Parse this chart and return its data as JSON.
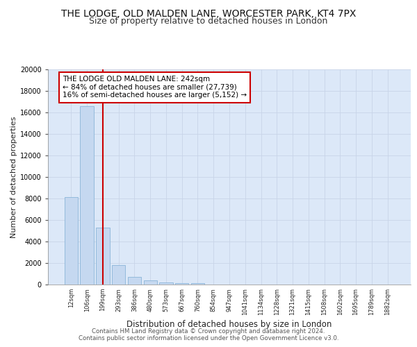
{
  "title": "THE LODGE, OLD MALDEN LANE, WORCESTER PARK, KT4 7PX",
  "subtitle": "Size of property relative to detached houses in London",
  "xlabel": "Distribution of detached houses by size in London",
  "ylabel": "Number of detached properties",
  "footer_line1": "Contains HM Land Registry data © Crown copyright and database right 2024.",
  "footer_line2": "Contains public sector information licensed under the Open Government Licence v3.0.",
  "x_labels": [
    "12sqm",
    "106sqm",
    "199sqm",
    "293sqm",
    "386sqm",
    "480sqm",
    "573sqm",
    "667sqm",
    "760sqm",
    "854sqm",
    "947sqm",
    "1041sqm",
    "1134sqm",
    "1228sqm",
    "1321sqm",
    "1415sqm",
    "1508sqm",
    "1602sqm",
    "1695sqm",
    "1789sqm",
    "1882sqm"
  ],
  "bar_heights": [
    8100,
    16600,
    5300,
    1800,
    700,
    360,
    210,
    155,
    145,
    0,
    0,
    0,
    0,
    0,
    0,
    0,
    0,
    0,
    0,
    0,
    0
  ],
  "bar_color": "#c5d8f0",
  "bar_edge_color": "#8ab4d8",
  "vline_x_index": 2,
  "vline_color": "#cc0000",
  "annotation_text": "THE LODGE OLD MALDEN LANE: 242sqm\n← 84% of detached houses are smaller (27,739)\n16% of semi-detached houses are larger (5,152) →",
  "annotation_box_color": "#cc0000",
  "annotation_text_color": "#000000",
  "ylim": [
    0,
    20000
  ],
  "yticks": [
    0,
    2000,
    4000,
    6000,
    8000,
    10000,
    12000,
    14000,
    16000,
    18000,
    20000
  ],
  "grid_color": "#c8d4e8",
  "bg_color": "#dce8f8",
  "plot_bg_color": "#dce8f8",
  "title_fontsize": 10,
  "subtitle_fontsize": 9
}
